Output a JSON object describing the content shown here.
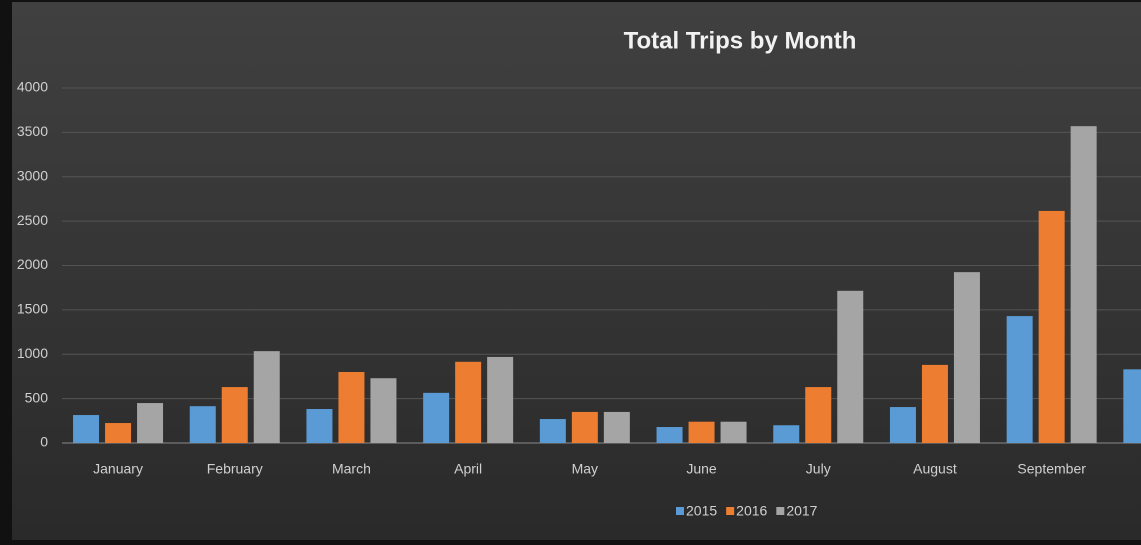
{
  "chart_data": {
    "type": "bar",
    "title": "Total Trips by Month",
    "categories": [
      "January",
      "February",
      "March",
      "April",
      "May",
      "June",
      "July",
      "August",
      "September",
      null
    ],
    "series": [
      {
        "name": "2015",
        "color": "#5b9bd5",
        "values": [
          315,
          415,
          383,
          565,
          270,
          180,
          200,
          405,
          1430,
          830
        ]
      },
      {
        "name": "2016",
        "color": "#ed7d31",
        "values": [
          225,
          630,
          800,
          915,
          350,
          240,
          630,
          880,
          2615,
          null
        ]
      },
      {
        "name": "2017",
        "color": "#a5a5a5",
        "values": [
          450,
          1035,
          730,
          970,
          350,
          240,
          1715,
          1925,
          3570,
          null
        ]
      }
    ],
    "ylim": [
      0,
      4000
    ],
    "yticks": [
      0,
      500,
      1000,
      1500,
      2000,
      2500,
      3000,
      3500,
      4000
    ],
    "grid": true,
    "legend": "bottom"
  }
}
